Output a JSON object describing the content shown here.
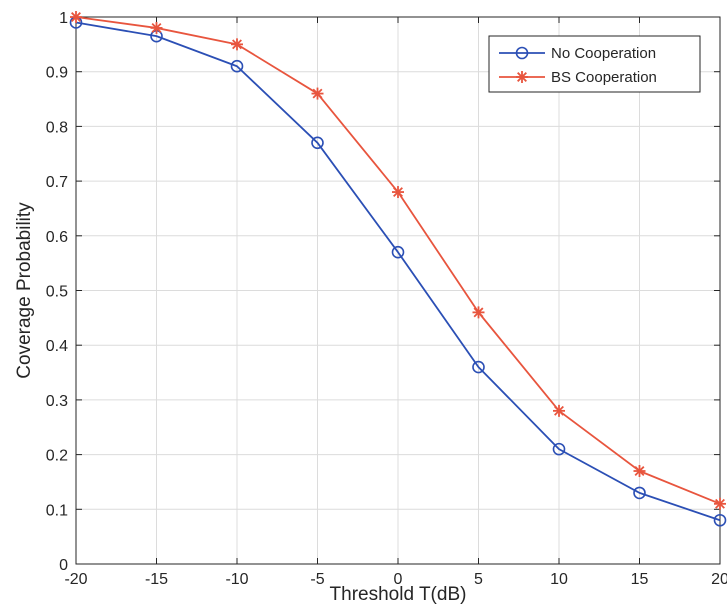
{
  "chart_data": {
    "type": "line",
    "title": "",
    "xlabel": "Threshold T(dB)",
    "ylabel": "Coverage Probability",
    "x": [
      -20,
      -15,
      -10,
      -5,
      0,
      5,
      10,
      15,
      20
    ],
    "xlim": [
      -20,
      20
    ],
    "ylim": [
      0,
      1
    ],
    "x_ticks": [
      -20,
      -15,
      -10,
      -5,
      0,
      5,
      10,
      15,
      20
    ],
    "x_tick_labels": [
      "-20",
      "-15",
      "-10",
      "-5",
      "0",
      "5",
      "10",
      "15",
      "20"
    ],
    "y_ticks": [
      0,
      0.1,
      0.2,
      0.3,
      0.4,
      0.5,
      0.6,
      0.7,
      0.8,
      0.9,
      1
    ],
    "y_tick_labels": [
      "0",
      "0.1",
      "0.2",
      "0.3",
      "0.4",
      "0.5",
      "0.6",
      "0.7",
      "0.8",
      "0.9",
      "1"
    ],
    "grid": true,
    "legend_position": "top-right",
    "series": [
      {
        "name": "No Cooperation",
        "values": [
          0.99,
          0.965,
          0.91,
          0.77,
          0.57,
          0.36,
          0.21,
          0.13,
          0.08
        ],
        "color": "#2b4fb5",
        "marker": "circle"
      },
      {
        "name": "BS Cooperation",
        "values": [
          1.0,
          0.98,
          0.95,
          0.86,
          0.68,
          0.46,
          0.28,
          0.17,
          0.11
        ],
        "color": "#e8553e",
        "marker": "asterisk"
      }
    ]
  }
}
